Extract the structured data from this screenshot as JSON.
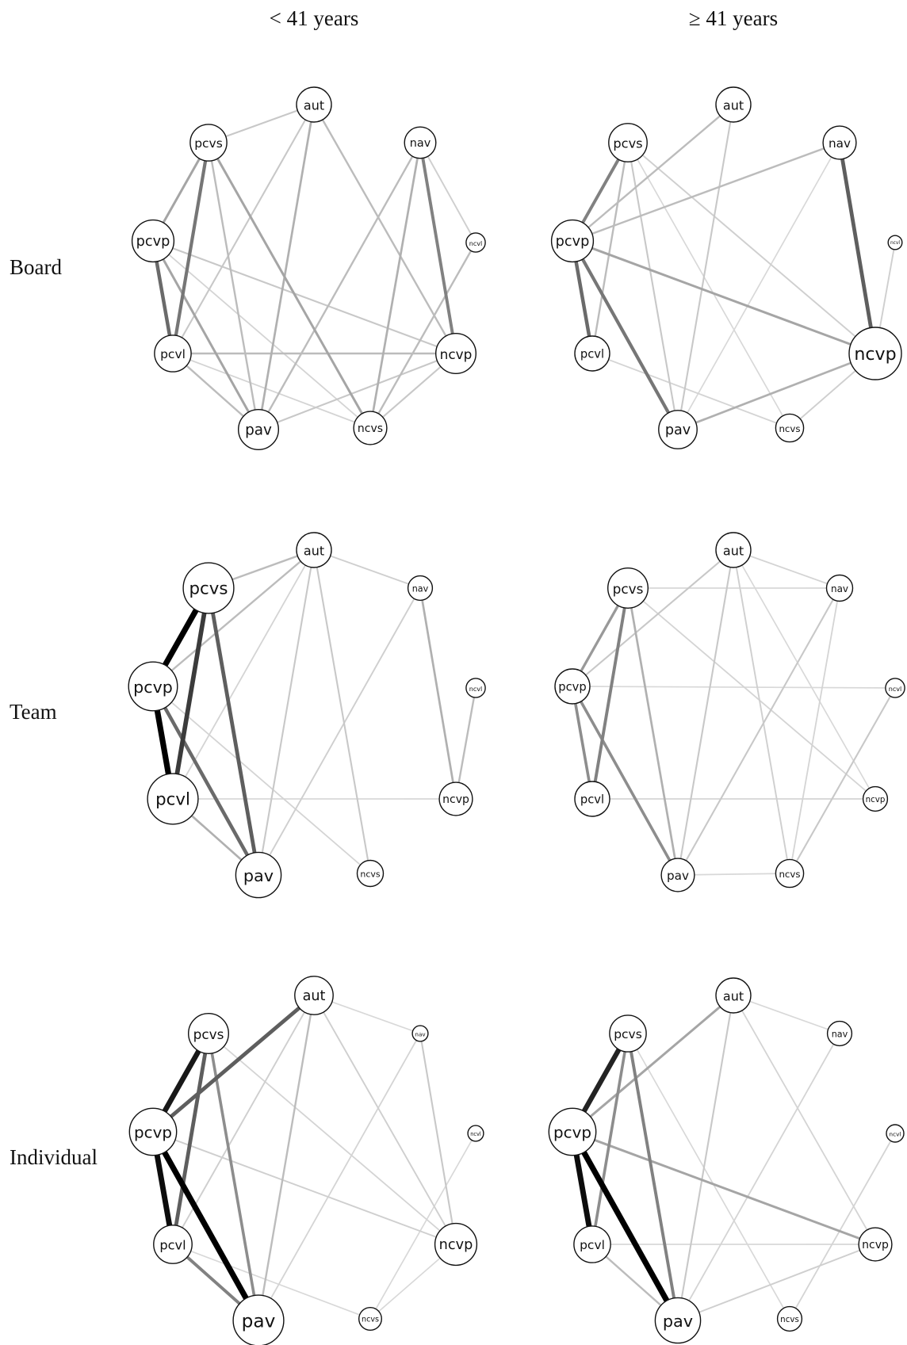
{
  "column_headers": [
    "< 41 years",
    "≥ 41 years"
  ],
  "row_headers": [
    "Board",
    "Team",
    "Individual"
  ],
  "node_names": [
    "aut",
    "nav",
    "ncvl",
    "ncvp",
    "ncvs",
    "pav",
    "pcvl",
    "pcvp",
    "pcvs"
  ],
  "edge_style": {
    "scale": "darker and thicker = stronger connection",
    "base_color": "#000000"
  },
  "networks": [
    {
      "row": "Board",
      "column": "< 41 years",
      "node_size": {
        "aut": 1.0,
        "nav": 0.9,
        "ncvl": 0.55,
        "ncvp": 1.15,
        "ncvs": 0.95,
        "pav": 1.15,
        "pcvl": 1.05,
        "pcvp": 1.2,
        "pcvs": 1.05
      },
      "edges": [
        {
          "from": "pcvp",
          "to": "pcvl",
          "weight": 0.55
        },
        {
          "from": "pcvs",
          "to": "pcvl",
          "weight": 0.5
        },
        {
          "from": "nav",
          "to": "ncvp",
          "weight": 0.45
        },
        {
          "from": "pcvs",
          "to": "pcvp",
          "weight": 0.3
        },
        {
          "from": "pcvp",
          "to": "pav",
          "weight": 0.3
        },
        {
          "from": "pcvs",
          "to": "ncvs",
          "weight": 0.3
        },
        {
          "from": "aut",
          "to": "pav",
          "weight": 0.25
        },
        {
          "from": "aut",
          "to": "pcvs",
          "weight": 0.15
        },
        {
          "from": "aut",
          "to": "ncvp",
          "weight": 0.2
        },
        {
          "from": "aut",
          "to": "pcvl",
          "weight": 0.15
        },
        {
          "from": "nav",
          "to": "ncvs",
          "weight": 0.25
        },
        {
          "from": "nav",
          "to": "pav",
          "weight": 0.2
        },
        {
          "from": "pcvs",
          "to": "pav",
          "weight": 0.2
        },
        {
          "from": "pcvl",
          "to": "ncvp",
          "weight": 0.2
        },
        {
          "from": "pcvl",
          "to": "pav",
          "weight": 0.2
        },
        {
          "from": "ncvl",
          "to": "ncvs",
          "weight": 0.2
        },
        {
          "from": "pav",
          "to": "ncvp",
          "weight": 0.15
        },
        {
          "from": "pcvp",
          "to": "ncvp",
          "weight": 0.15
        },
        {
          "from": "ncvs",
          "to": "ncvp",
          "weight": 0.15
        },
        {
          "from": "nav",
          "to": "ncvl",
          "weight": 0.12
        },
        {
          "from": "pcvp",
          "to": "ncvs",
          "weight": 0.1
        },
        {
          "from": "pcvl",
          "to": "ncvs",
          "weight": 0.1
        }
      ]
    },
    {
      "row": "Board",
      "column": "≥ 41 years",
      "node_size": {
        "aut": 1.0,
        "nav": 0.95,
        "ncvl": 0.4,
        "ncvp": 1.5,
        "ncvs": 0.8,
        "pav": 1.1,
        "pcvl": 1.0,
        "pcvp": 1.2,
        "pcvs": 1.1
      },
      "edges": [
        {
          "from": "nav",
          "to": "ncvp",
          "weight": 0.6
        },
        {
          "from": "pcvp",
          "to": "pcvl",
          "weight": 0.55
        },
        {
          "from": "pcvp",
          "to": "pav",
          "weight": 0.5
        },
        {
          "from": "pcvs",
          "to": "pcvp",
          "weight": 0.45
        },
        {
          "from": "pcvp",
          "to": "ncvp",
          "weight": 0.3
        },
        {
          "from": "pav",
          "to": "ncvp",
          "weight": 0.25
        },
        {
          "from": "pcvp",
          "to": "nav",
          "weight": 0.2
        },
        {
          "from": "aut",
          "to": "pcvp",
          "weight": 0.2
        },
        {
          "from": "pcvs",
          "to": "pcvl",
          "weight": 0.2
        },
        {
          "from": "pcvs",
          "to": "pav",
          "weight": 0.15
        },
        {
          "from": "aut",
          "to": "pav",
          "weight": 0.15
        },
        {
          "from": "pcvs",
          "to": "ncvp",
          "weight": 0.12
        },
        {
          "from": "ncvl",
          "to": "ncvp",
          "weight": 0.12
        },
        {
          "from": "pcvl",
          "to": "ncvs",
          "weight": 0.1
        },
        {
          "from": "ncvs",
          "to": "ncvp",
          "weight": 0.12
        },
        {
          "from": "pcvs",
          "to": "ncvs",
          "weight": 0.08
        },
        {
          "from": "nav",
          "to": "pav",
          "weight": 0.08
        }
      ]
    },
    {
      "row": "Team",
      "column": "< 41 years",
      "node_size": {
        "aut": 1.0,
        "nav": 0.7,
        "ncvl": 0.55,
        "ncvp": 0.95,
        "ncvs": 0.75,
        "pav": 1.3,
        "pcvl": 1.45,
        "pcvp": 1.4,
        "pcvs": 1.45
      },
      "edges": [
        {
          "from": "pcvs",
          "to": "pcvp",
          "weight": 1.0
        },
        {
          "from": "pcvp",
          "to": "pcvl",
          "weight": 1.0
        },
        {
          "from": "pcvs",
          "to": "pcvl",
          "weight": 0.75
        },
        {
          "from": "pcvs",
          "to": "pav",
          "weight": 0.6
        },
        {
          "from": "pcvp",
          "to": "pav",
          "weight": 0.55
        },
        {
          "from": "pcvl",
          "to": "pav",
          "weight": 0.25
        },
        {
          "from": "nav",
          "to": "ncvp",
          "weight": 0.25
        },
        {
          "from": "ncvl",
          "to": "ncvp",
          "weight": 0.2
        },
        {
          "from": "aut",
          "to": "pcvs",
          "weight": 0.2
        },
        {
          "from": "aut",
          "to": "pcvp",
          "weight": 0.2
        },
        {
          "from": "aut",
          "to": "pav",
          "weight": 0.15
        },
        {
          "from": "aut",
          "to": "ncvs",
          "weight": 0.15
        },
        {
          "from": "aut",
          "to": "nav",
          "weight": 0.12
        },
        {
          "from": "nav",
          "to": "pav",
          "weight": 0.12
        },
        {
          "from": "pcvp",
          "to": "ncvs",
          "weight": 0.1
        },
        {
          "from": "pcvl",
          "to": "ncvp",
          "weight": 0.08
        },
        {
          "from": "aut",
          "to": "pcvl",
          "weight": 0.1
        }
      ]
    },
    {
      "row": "Team",
      "column": "≥ 41 years",
      "node_size": {
        "aut": 1.0,
        "nav": 0.75,
        "ncvl": 0.55,
        "ncvp": 0.7,
        "ncvs": 0.8,
        "pav": 0.95,
        "pcvl": 1.0,
        "pcvp": 1.0,
        "pcvs": 1.15
      },
      "edges": [
        {
          "from": "pcvs",
          "to": "pcvl",
          "weight": 0.45
        },
        {
          "from": "pcvp",
          "to": "pcvl",
          "weight": 0.4
        },
        {
          "from": "pcvp",
          "to": "pav",
          "weight": 0.4
        },
        {
          "from": "pcvs",
          "to": "pcvp",
          "weight": 0.35
        },
        {
          "from": "pcvs",
          "to": "pav",
          "weight": 0.25
        },
        {
          "from": "aut",
          "to": "pav",
          "weight": 0.15
        },
        {
          "from": "aut",
          "to": "pcvp",
          "weight": 0.15
        },
        {
          "from": "aut",
          "to": "ncvs",
          "weight": 0.12
        },
        {
          "from": "nav",
          "to": "pav",
          "weight": 0.15
        },
        {
          "from": "ncvl",
          "to": "ncvs",
          "weight": 0.15
        },
        {
          "from": "pcvs",
          "to": "ncvp",
          "weight": 0.1
        },
        {
          "from": "pcvl",
          "to": "ncvp",
          "weight": 0.1
        },
        {
          "from": "aut",
          "to": "nav",
          "weight": 0.1
        },
        {
          "from": "nav",
          "to": "ncvs",
          "weight": 0.1
        },
        {
          "from": "pav",
          "to": "ncvs",
          "weight": 0.08
        },
        {
          "from": "pcvs",
          "to": "nav",
          "weight": 0.08
        },
        {
          "from": "aut",
          "to": "ncvp",
          "weight": 0.08
        },
        {
          "from": "pcvp",
          "to": "ncvl",
          "weight": 0.08
        }
      ]
    },
    {
      "row": "Individual",
      "column": "< 41 years",
      "node_size": {
        "aut": 1.1,
        "nav": 0.45,
        "ncvl": 0.45,
        "ncvp": 1.2,
        "ncvs": 0.65,
        "pav": 1.45,
        "pcvl": 1.1,
        "pcvp": 1.35,
        "pcvs": 1.15
      },
      "edges": [
        {
          "from": "pcvp",
          "to": "pav",
          "weight": 1.0
        },
        {
          "from": "pcvp",
          "to": "pcvl",
          "weight": 0.95
        },
        {
          "from": "pcvs",
          "to": "pcvp",
          "weight": 0.9
        },
        {
          "from": "aut",
          "to": "pcvp",
          "weight": 0.6
        },
        {
          "from": "pcvs",
          "to": "pcvl",
          "weight": 0.6
        },
        {
          "from": "pcvl",
          "to": "pav",
          "weight": 0.45
        },
        {
          "from": "pcvs",
          "to": "pav",
          "weight": 0.4
        },
        {
          "from": "aut",
          "to": "pav",
          "weight": 0.2
        },
        {
          "from": "aut",
          "to": "ncvp",
          "weight": 0.12
        },
        {
          "from": "aut",
          "to": "pcvl",
          "weight": 0.12
        },
        {
          "from": "nav",
          "to": "ncvp",
          "weight": 0.15
        },
        {
          "from": "pcvp",
          "to": "ncvp",
          "weight": 0.12
        },
        {
          "from": "pcvs",
          "to": "ncvp",
          "weight": 0.1
        },
        {
          "from": "pav",
          "to": "nav",
          "weight": 0.1
        },
        {
          "from": "pcvl",
          "to": "ncvs",
          "weight": 0.08
        },
        {
          "from": "ncvl",
          "to": "ncvs",
          "weight": 0.08
        },
        {
          "from": "ncvp",
          "to": "ncvs",
          "weight": 0.08
        },
        {
          "from": "aut",
          "to": "nav",
          "weight": 0.08
        }
      ]
    },
    {
      "row": "Individual",
      "column": "≥ 41 years",
      "node_size": {
        "aut": 1.0,
        "nav": 0.7,
        "ncvl": 0.5,
        "ncvp": 0.95,
        "ncvs": 0.7,
        "pav": 1.3,
        "pcvl": 1.05,
        "pcvp": 1.35,
        "pcvs": 1.05
      },
      "edges": [
        {
          "from": "pcvp",
          "to": "pav",
          "weight": 1.0
        },
        {
          "from": "pcvp",
          "to": "pcvl",
          "weight": 0.95
        },
        {
          "from": "pcvs",
          "to": "pcvp",
          "weight": 0.85
        },
        {
          "from": "pcvs",
          "to": "pav",
          "weight": 0.45
        },
        {
          "from": "pcvs",
          "to": "pcvl",
          "weight": 0.4
        },
        {
          "from": "aut",
          "to": "pcvp",
          "weight": 0.3
        },
        {
          "from": "pcvp",
          "to": "ncvp",
          "weight": 0.3
        },
        {
          "from": "pcvl",
          "to": "pav",
          "weight": 0.2
        },
        {
          "from": "aut",
          "to": "pav",
          "weight": 0.15
        },
        {
          "from": "pav",
          "to": "ncvp",
          "weight": 0.12
        },
        {
          "from": "ncvl",
          "to": "ncvs",
          "weight": 0.1
        },
        {
          "from": "aut",
          "to": "ncvp",
          "weight": 0.1
        },
        {
          "from": "nav",
          "to": "pav",
          "weight": 0.1
        },
        {
          "from": "aut",
          "to": "nav",
          "weight": 0.08
        },
        {
          "from": "pcvs",
          "to": "ncvs",
          "weight": 0.08
        },
        {
          "from": "pcvl",
          "to": "ncvp",
          "weight": 0.08
        }
      ]
    }
  ]
}
